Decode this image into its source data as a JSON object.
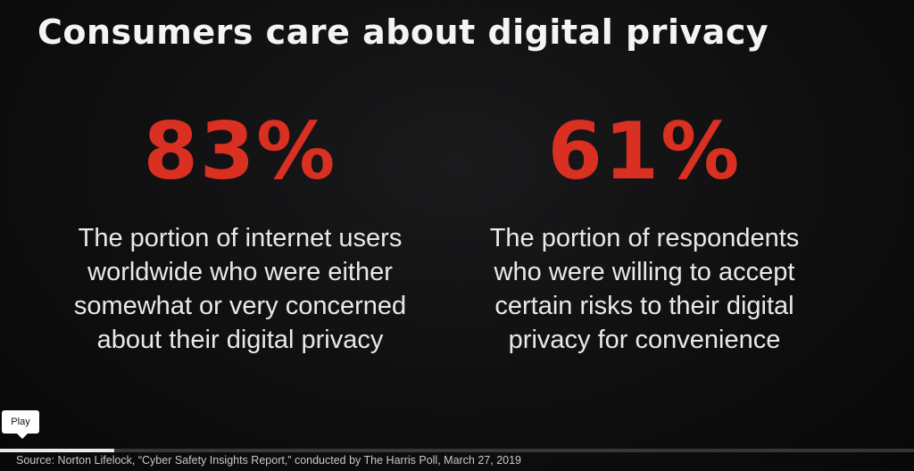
{
  "slide": {
    "title": "Consumers care about digital privacy",
    "stats": [
      {
        "value": "83%",
        "lines": [
          "The portion of internet users",
          "worldwide who were either",
          "somewhat or very concerned",
          "about their digital privacy"
        ]
      },
      {
        "value": "61%",
        "lines": [
          "The portion of respondents",
          "who were willing to accept",
          "certain risks to their digital",
          "privacy for convenience"
        ]
      }
    ],
    "source": "Source: Norton Lifelock, “Cyber Safety Insights Report,” conducted by The Harris Poll, March 27, 2019"
  },
  "player": {
    "tooltip": "Play",
    "progress_fraction": 0.125
  },
  "colors": {
    "accent": "#d93022",
    "background": "#0d0d0e",
    "text": "#f1f1f1"
  }
}
